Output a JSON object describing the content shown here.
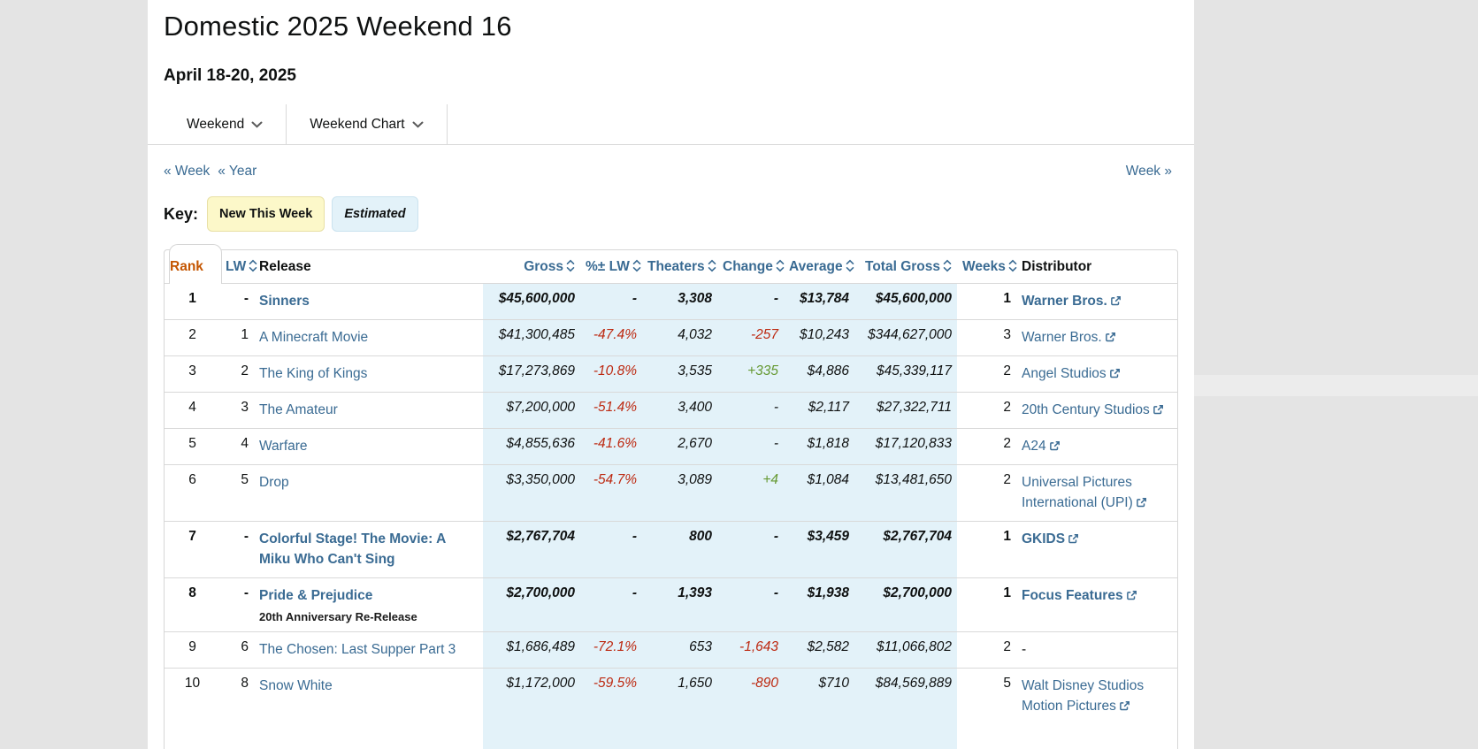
{
  "page": {
    "title": "Domestic 2025 Weekend 16",
    "date_range": "April 18-20, 2025"
  },
  "tabs": [
    {
      "label": "Weekend"
    },
    {
      "label": "Weekend Chart"
    }
  ],
  "nav": {
    "prev_week": "« Week",
    "prev_year": "« Year",
    "next_week": "Week »"
  },
  "key": {
    "label": "Key:",
    "badges": [
      {
        "label": "New This Week",
        "type": "new"
      },
      {
        "label": "Estimated",
        "type": "estimated"
      }
    ]
  },
  "colors": {
    "accent_orange": "#c45500",
    "link_blue": "#3a6b93",
    "negative_red": "#bd2a12",
    "positive_green": "#669933",
    "estimated_bg": "#e3f2f9",
    "new_badge_bg": "#fcf8c9",
    "page_bg": "#e4e4e4"
  },
  "table": {
    "columns": [
      {
        "key": "rank",
        "label": "Rank",
        "sort": "active-asc"
      },
      {
        "key": "lw",
        "label": "LW",
        "sort": true
      },
      {
        "key": "release",
        "label": "Release",
        "sort": false,
        "align": "left",
        "dark": true
      },
      {
        "key": "gross",
        "label": "Gross",
        "sort": true
      },
      {
        "key": "pct_lw",
        "label": "%± LW",
        "sort": true
      },
      {
        "key": "theaters",
        "label": "Theaters",
        "sort": true
      },
      {
        "key": "change",
        "label": "Change",
        "sort": true
      },
      {
        "key": "average",
        "label": "Average",
        "sort": true
      },
      {
        "key": "total_gross",
        "label": "Total Gross",
        "sort": true
      },
      {
        "key": "weeks",
        "label": "Weeks",
        "sort": true
      },
      {
        "key": "distributor",
        "label": "Distributor",
        "sort": false,
        "align": "left",
        "dark": true
      }
    ],
    "rows": [
      {
        "rank": "1",
        "lw": "-",
        "release": "Sinners",
        "gross": "$45,600,000",
        "pct_lw": "-",
        "theaters": "3,308",
        "change": "-",
        "average": "$13,784",
        "total_gross": "$45,600,000",
        "weeks": "1",
        "distributor": "Warner Bros.",
        "dist_ext": true,
        "is_new": true
      },
      {
        "rank": "2",
        "lw": "1",
        "release": "A Minecraft Movie",
        "gross": "$41,300,485",
        "pct_lw": "-47.4%",
        "theaters": "4,032",
        "change": "-257",
        "average": "$10,243",
        "total_gross": "$344,627,000",
        "weeks": "3",
        "distributor": "Warner Bros.",
        "dist_ext": true,
        "is_new": false
      },
      {
        "rank": "3",
        "lw": "2",
        "release": "The King of Kings",
        "gross": "$17,273,869",
        "pct_lw": "-10.8%",
        "theaters": "3,535",
        "change": "+335",
        "average": "$4,886",
        "total_gross": "$45,339,117",
        "weeks": "2",
        "distributor": "Angel Studios",
        "dist_ext": true,
        "is_new": false
      },
      {
        "rank": "4",
        "lw": "3",
        "release": "The Amateur",
        "gross": "$7,200,000",
        "pct_lw": "-51.4%",
        "theaters": "3,400",
        "change": "-",
        "average": "$2,117",
        "total_gross": "$27,322,711",
        "weeks": "2",
        "distributor": "20th Century Studios",
        "dist_ext": true,
        "is_new": false
      },
      {
        "rank": "5",
        "lw": "4",
        "release": "Warfare",
        "gross": "$4,855,636",
        "pct_lw": "-41.6%",
        "theaters": "2,670",
        "change": "-",
        "average": "$1,818",
        "total_gross": "$17,120,833",
        "weeks": "2",
        "distributor": "A24",
        "dist_ext": true,
        "is_new": false
      },
      {
        "rank": "6",
        "lw": "5",
        "release": "Drop",
        "gross": "$3,350,000",
        "pct_lw": "-54.7%",
        "theaters": "3,089",
        "change": "+4",
        "average": "$1,084",
        "total_gross": "$13,481,650",
        "weeks": "2",
        "distributor": "Universal Pictures International (UPI)",
        "dist_ext": true,
        "is_new": false
      },
      {
        "rank": "7",
        "lw": "-",
        "release": "Colorful Stage! The Movie: A Miku Who Can't Sing",
        "gross": "$2,767,704",
        "pct_lw": "-",
        "theaters": "800",
        "change": "-",
        "average": "$3,459",
        "total_gross": "$2,767,704",
        "weeks": "1",
        "distributor": "GKIDS",
        "dist_ext": true,
        "is_new": true
      },
      {
        "rank": "8",
        "lw": "-",
        "release": "Pride & Prejudice",
        "release_sub": "20th Anniversary Re-Release",
        "gross": "$2,700,000",
        "pct_lw": "-",
        "theaters": "1,393",
        "change": "-",
        "average": "$1,938",
        "total_gross": "$2,700,000",
        "weeks": "1",
        "distributor": "Focus Features",
        "dist_ext": true,
        "is_new": true
      },
      {
        "rank": "9",
        "lw": "6",
        "release": "The Chosen: Last Supper Part 3",
        "gross": "$1,686,489",
        "pct_lw": "-72.1%",
        "theaters": "653",
        "change": "-1,643",
        "average": "$2,582",
        "total_gross": "$11,066,802",
        "weeks": "2",
        "distributor": "-",
        "dist_ext": false,
        "is_new": false
      },
      {
        "rank": "10",
        "lw": "8",
        "release": "Snow White",
        "gross": "$1,172,000",
        "pct_lw": "-59.5%",
        "theaters": "1,650",
        "change": "-890",
        "average": "$710",
        "total_gross": "$84,569,889",
        "weeks": "5",
        "distributor": "Walt Disney Studios Motion Pictures",
        "dist_ext": true,
        "is_new": false
      }
    ]
  }
}
